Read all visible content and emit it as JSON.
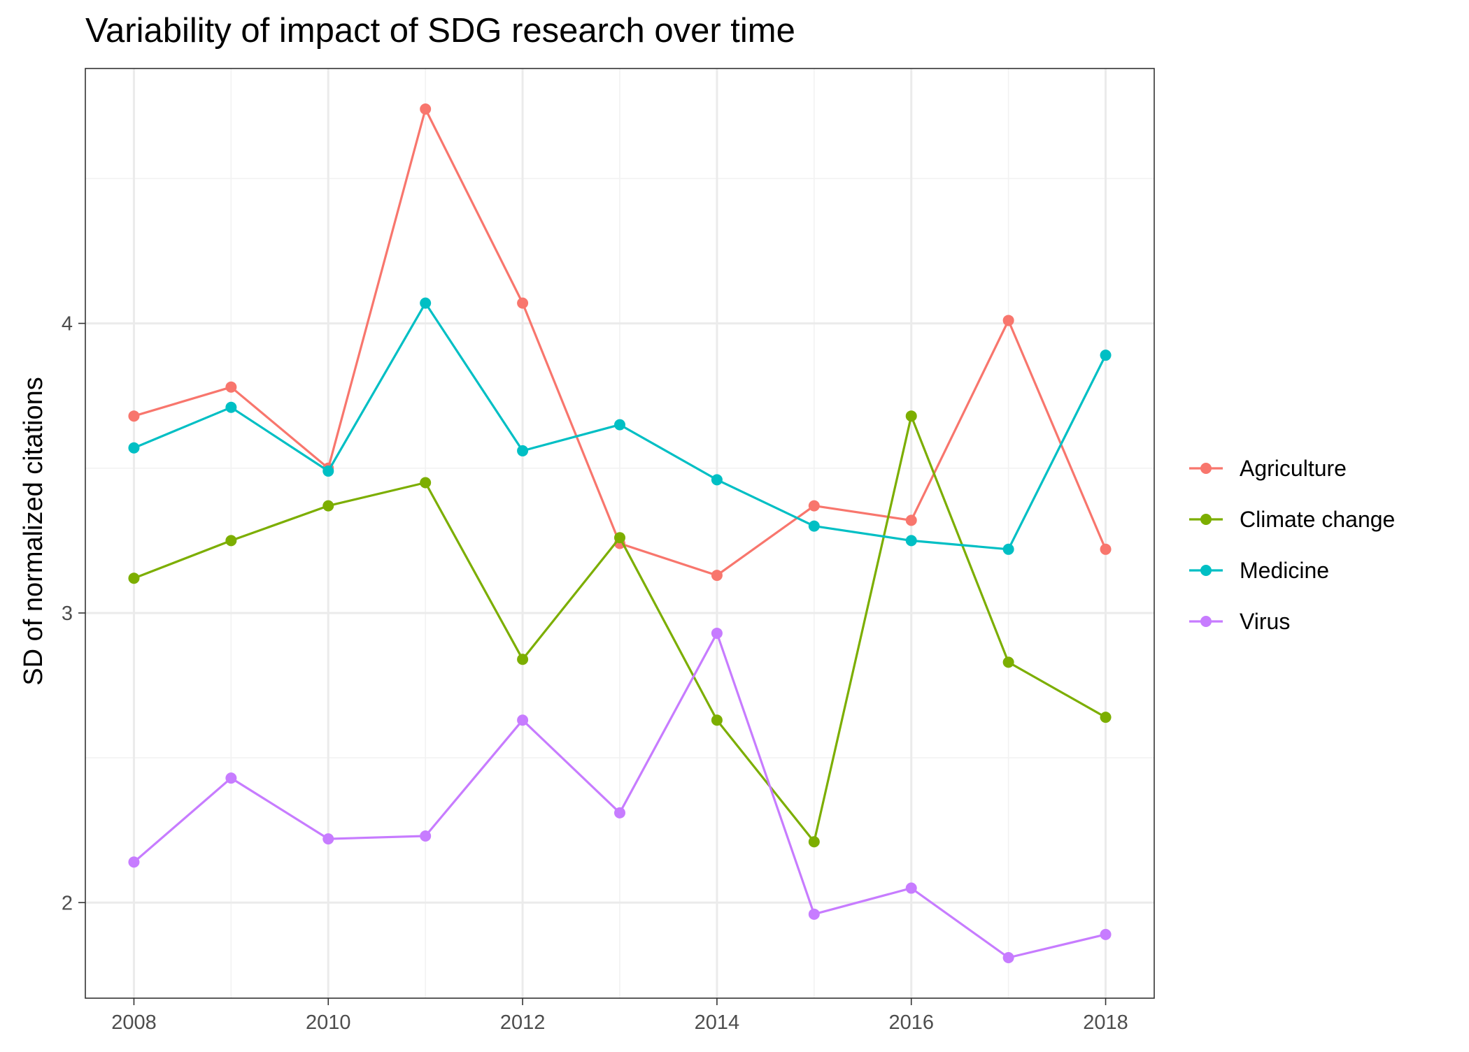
{
  "chart_data": {
    "type": "line",
    "title": "Variability of impact of SDG research over time",
    "xlabel": "",
    "ylabel": "SD of normalized citations",
    "x": [
      2008,
      2009,
      2010,
      2011,
      2012,
      2013,
      2014,
      2015,
      2016,
      2017,
      2018
    ],
    "xlim": [
      2007.5,
      2018.5
    ],
    "ylim": [
      1.67,
      4.88
    ],
    "xticks": [
      2008,
      2010,
      2012,
      2014,
      2016,
      2018
    ],
    "yticks": [
      2,
      3,
      4
    ],
    "grid": true,
    "legend_position": "right",
    "series": [
      {
        "name": "Agriculture",
        "color": "#F8766D",
        "values": [
          3.68,
          3.78,
          3.5,
          4.74,
          4.07,
          3.24,
          3.13,
          3.37,
          3.32,
          4.01,
          3.22
        ]
      },
      {
        "name": "Climate change",
        "color": "#7CAE00",
        "values": [
          3.12,
          3.25,
          3.37,
          3.45,
          2.84,
          3.26,
          2.63,
          2.21,
          3.68,
          2.83,
          2.64
        ]
      },
      {
        "name": "Medicine",
        "color": "#00BFC4",
        "values": [
          3.57,
          3.71,
          3.49,
          4.07,
          3.56,
          3.65,
          3.46,
          3.3,
          3.25,
          3.22,
          3.89
        ]
      },
      {
        "name": "Virus",
        "color": "#C77CFF",
        "values": [
          2.14,
          2.43,
          2.22,
          2.23,
          2.63,
          2.31,
          2.93,
          1.96,
          2.05,
          1.81,
          1.89
        ]
      }
    ]
  }
}
